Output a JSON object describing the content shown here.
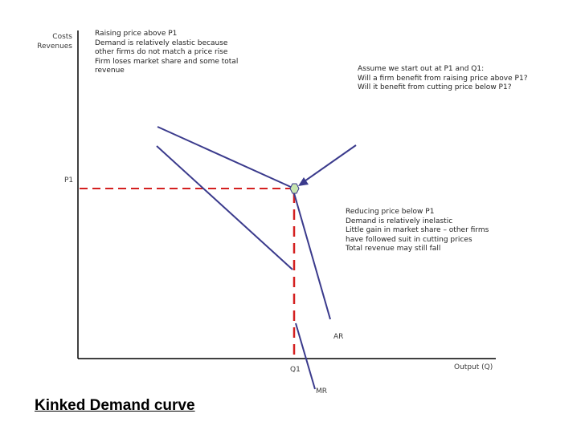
{
  "axes": {
    "y_label_lines": [
      "Costs",
      "Revenues"
    ],
    "x_label": "Output (Q)"
  },
  "markers": {
    "p1": "P1",
    "q1": "Q1",
    "ar": "AR",
    "mr": "MR"
  },
  "notes": {
    "raising": [
      "Raising price above P1",
      "Demand is relatively elastic because",
      "other firms do not match a price rise",
      "Firm loses market share and some total",
      "revenue"
    ],
    "assume": [
      "Assume we start out at P1 and Q1:",
      "Will a firm benefit from raising price above P1?",
      "Will it benefit from cutting price below P1?"
    ],
    "reducing": [
      "Reducing price below P1",
      "Demand is relatively inelastic",
      "Little gain in market share – other firms",
      "have followed suit in cutting prices",
      "Total revenue may still fall"
    ]
  },
  "caption": "Kinked Demand curve",
  "colors": {
    "curve": "#3a3a8c",
    "dashed_guide": "#d42020",
    "kink_point": "#c8e6b0",
    "axis": "#000000"
  }
}
